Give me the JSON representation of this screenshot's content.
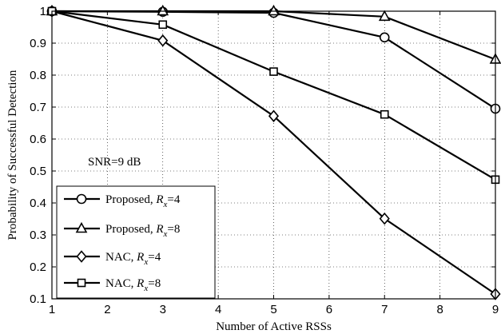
{
  "chart_data": {
    "type": "line",
    "xlabel": "Number of Active RSSs",
    "ylabel": "Probability of Successful Detection",
    "xlim": [
      1,
      9
    ],
    "ylim": [
      0.1,
      1
    ],
    "xticks": [
      "1",
      "2",
      "3",
      "4",
      "5",
      "6",
      "7",
      "8",
      "9"
    ],
    "yticks": [
      "0.1",
      "0.2",
      "0.3",
      "0.4",
      "0.5",
      "0.6",
      "0.7",
      "0.8",
      "0.9",
      "1"
    ],
    "grid": true,
    "annotation": "SNR=9 dB",
    "legend_position": "bottom-left",
    "x": [
      1,
      3,
      5,
      7,
      9
    ],
    "series": [
      {
        "name_main": "Proposed, ",
        "name_sym": "R",
        "name_sub": "x",
        "name_tail": "=4",
        "marker": "circle",
        "values": [
          1.0,
          0.998,
          0.995,
          0.918,
          0.695
        ]
      },
      {
        "name_main": "Proposed, ",
        "name_sym": "R",
        "name_sub": "x",
        "name_tail": "=8",
        "marker": "triangle",
        "values": [
          1.0,
          1.0,
          1.0,
          0.983,
          0.849
        ]
      },
      {
        "name_main": "NAC, ",
        "name_sym": "R",
        "name_sub": "x",
        "name_tail": "=4",
        "marker": "diamond",
        "values": [
          1.0,
          0.908,
          0.672,
          0.351,
          0.115
        ]
      },
      {
        "name_main": "NAC, ",
        "name_sym": "R",
        "name_sub": "x",
        "name_tail": "=8",
        "marker": "square",
        "values": [
          1.0,
          0.958,
          0.811,
          0.677,
          0.473
        ]
      }
    ]
  }
}
